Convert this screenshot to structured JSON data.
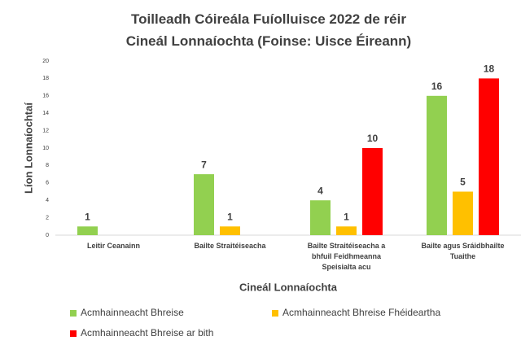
{
  "chart_data": {
    "type": "bar",
    "title": "Toilleadh Cóireála Fuíolluisce 2022 de réir Cineál Lonnaíochta (Foinse: Uisce Éireann)",
    "xlabel": "Cineál Lonnaíochta",
    "ylabel": "Líon Lonnaíochtaí",
    "categories": [
      "Leitir Ceanainn",
      "Bailte Straitéiseacha",
      "Bailte Straitéiseacha a bhfuil Feidhmeanna Speisialta acu",
      "Bailte agus Sráidbhailte Tuaithe"
    ],
    "series": [
      {
        "name": "Acmhainneacht Bhreise",
        "color": "#92d050",
        "values": [
          1,
          7,
          4,
          16
        ]
      },
      {
        "name": "Acmhainneacht Bhreise Fhéideartha",
        "color": "#ffc000",
        "values": [
          null,
          1,
          1,
          5
        ]
      },
      {
        "name": "Acmhainneacht Bhreise ar bith",
        "color": "#ff0000",
        "values": [
          null,
          null,
          10,
          18
        ]
      }
    ],
    "ylim": [
      0,
      20
    ],
    "yticks": [
      0,
      2,
      4,
      6,
      8,
      10,
      12,
      14,
      16,
      18,
      20
    ],
    "grid": false,
    "legend": "bottom"
  }
}
